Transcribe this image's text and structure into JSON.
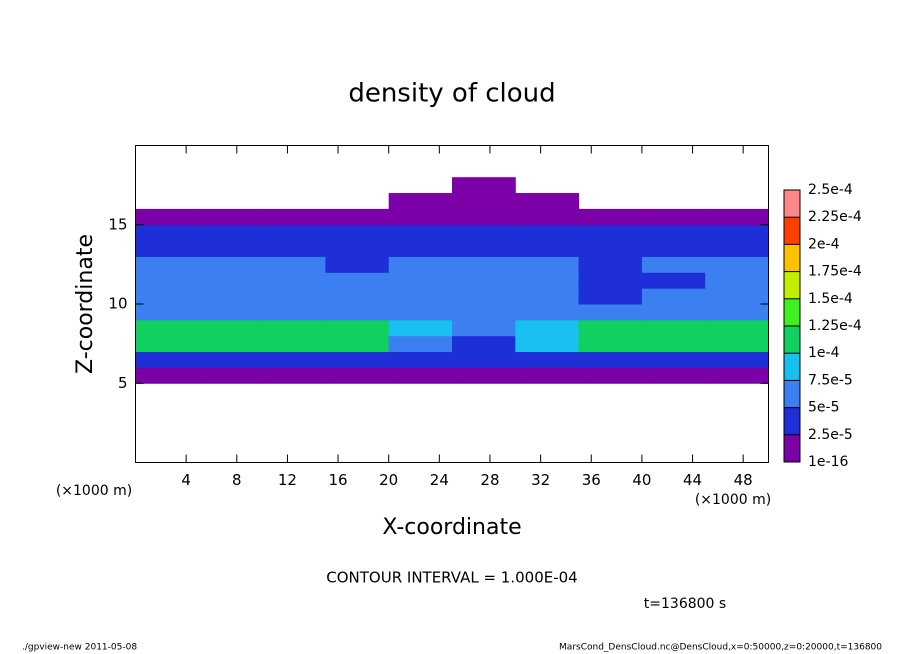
{
  "chart_data": {
    "type": "contour",
    "title": "density of cloud",
    "xlabel": "X-coordinate",
    "ylabel": "Z-coordinate",
    "xunit": "(×1000 m)",
    "xunit2": "(×1000 m)",
    "contour_note": "CONTOUR INTERVAL = 1.000E-04",
    "time_note": "t=136800 s",
    "footer_left": "./gpview-new  2011-05-08",
    "footer_right": "MarsCond_DensCloud.nc@DensCloud,x=0:50000,z=0:20000,t=136800",
    "xlim": [
      0,
      50
    ],
    "ylim": [
      0,
      20
    ],
    "xticks": [
      4,
      8,
      12,
      16,
      20,
      24,
      28,
      32,
      36,
      40,
      44,
      48
    ],
    "yticks": [
      5,
      10,
      15
    ],
    "xbins": [
      0,
      5,
      10,
      15,
      20,
      25,
      30,
      35,
      40,
      45,
      50
    ],
    "zbins": [
      0,
      1,
      2,
      3,
      4,
      5,
      6,
      7,
      8,
      9,
      10,
      11,
      12,
      13,
      14,
      15,
      16,
      17,
      18,
      19,
      20
    ],
    "z": [
      [
        0,
        0,
        0,
        0,
        0,
        0,
        0,
        0,
        0,
        0
      ],
      [
        0,
        0,
        0,
        0,
        0,
        0,
        0,
        0,
        0,
        0
      ],
      [
        0,
        0,
        0,
        0,
        0,
        0,
        0,
        0,
        0,
        0
      ],
      [
        0,
        0,
        0,
        0,
        0,
        0,
        0,
        0,
        0,
        0
      ],
      [
        0,
        0,
        0,
        0,
        0,
        0,
        0,
        0,
        0,
        0
      ],
      [
        1e-05,
        1e-05,
        1e-05,
        1e-05,
        1e-05,
        1e-05,
        1e-05,
        1e-05,
        1e-05,
        1e-05
      ],
      [
        4e-05,
        4e-05,
        4e-05,
        4e-05,
        3e-05,
        4e-05,
        4e-05,
        4e-05,
        4e-05,
        4e-05
      ],
      [
        0.00011,
        0.00011,
        0.00011,
        0.00011,
        6e-05,
        5e-05,
        8e-05,
        0.000105,
        0.000105,
        0.000105
      ],
      [
        0.000115,
        0.000115,
        0.000115,
        0.000115,
        8e-05,
        6e-05,
        9e-05,
        0.00011,
        0.00011,
        0.00011
      ],
      [
        7e-05,
        7e-05,
        7e-05,
        7e-05,
        7e-05,
        6e-05,
        7e-05,
        7e-05,
        7e-05,
        7e-05
      ],
      [
        6.5e-05,
        6.5e-05,
        6.5e-05,
        6.5e-05,
        6.5e-05,
        6.5e-05,
        6.5e-05,
        5e-05,
        6.5e-05,
        6.5e-05
      ],
      [
        6e-05,
        6e-05,
        6e-05,
        6e-05,
        6e-05,
        7e-05,
        6.5e-05,
        3.5e-05,
        5e-05,
        6e-05
      ],
      [
        5.5e-05,
        5.5e-05,
        5.5e-05,
        4e-05,
        5.5e-05,
        5.5e-05,
        5.5e-05,
        3e-05,
        5.5e-05,
        6e-05
      ],
      [
        5e-05,
        5e-05,
        3.5e-05,
        3.5e-05,
        5e-05,
        5e-05,
        3e-05,
        3e-05,
        3e-05,
        5e-05
      ],
      [
        4e-05,
        4e-05,
        4e-05,
        4e-05,
        4e-05,
        4e-05,
        4e-05,
        4e-05,
        4e-05,
        4e-05
      ],
      [
        1e-05,
        1e-05,
        1e-05,
        1e-05,
        1e-05,
        1e-05,
        1e-05,
        1e-05,
        1e-05,
        1e-05
      ],
      [
        0,
        0,
        0,
        0,
        1e-05,
        1e-05,
        1e-05,
        0,
        0,
        0
      ],
      [
        0,
        0,
        0,
        0,
        0,
        5e-06,
        0,
        0,
        0,
        0
      ],
      [
        0,
        0,
        0,
        0,
        0,
        0,
        0,
        0,
        0,
        0
      ],
      [
        0,
        0,
        0,
        0,
        0,
        0,
        0,
        0,
        0,
        0
      ]
    ],
    "colors": [
      "#7b00a8",
      "#1e2fd8",
      "#3b7ff0",
      "#18c0f0",
      "#10d060",
      "#40f020",
      "#c0f000",
      "#ffc000",
      "#ff4000",
      "#ff8888"
    ],
    "clim": [
      1e-16,
      0.00025
    ],
    "cticks": [
      1e-16,
      {
        "value": 2.5e-05,
        "label": "2.5e-5"
      },
      {
        "value": 5e-05,
        "label": "5e-5"
      },
      {
        "value": 7.5e-05,
        "label": "7.5e-5"
      },
      {
        "value": 0.0001,
        "label": "1e-4"
      },
      {
        "value": 0.000125,
        "label": "1.25e-4"
      },
      {
        "value": 0.00015,
        "label": "1.5e-4"
      },
      {
        "value": 0.000175,
        "label": "1.75e-4"
      },
      {
        "value": 0.0002,
        "label": "2e-4"
      },
      {
        "value": 0.000225,
        "label": "2.25e-4"
      },
      {
        "value": 0.00025,
        "label": "2.5e-4"
      }
    ]
  }
}
